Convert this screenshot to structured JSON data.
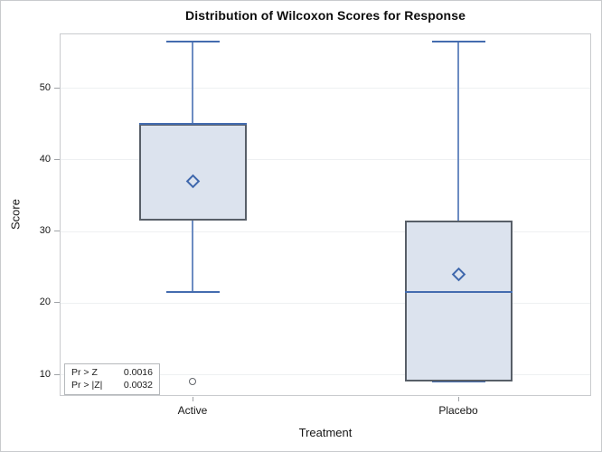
{
  "colors": {
    "box_fill": "#dce3ee",
    "box_border": "#585f68",
    "line_blue": "#446caf",
    "whisker_blue": "#6c8cc2",
    "mean_blue": "#3e67ac",
    "outlier_stroke": "#62666b",
    "gridline": "#eef0f2",
    "axis_border": "#c9cbce",
    "tick": "#9fa2a6",
    "text": "#161616"
  },
  "chart_data": {
    "type": "boxplot",
    "title": "Distribution of Wilcoxon Scores for Response",
    "xlabel": "Treatment",
    "ylabel": "Score",
    "ylim": [
      7.0,
      57.6
    ],
    "yticks": [
      10,
      20,
      30,
      40,
      50
    ],
    "grid": "horizontal",
    "legend": "none",
    "categories": [
      "Active",
      "Placebo"
    ],
    "series": [
      {
        "name": "Active",
        "whisker_low": 21.5,
        "q1": 31.5,
        "median": 45,
        "q3": 45,
        "whisker_high": 56.5,
        "mean": 37,
        "outliers": [
          9
        ]
      },
      {
        "name": "Placebo",
        "whisker_low": 9,
        "q1": 9,
        "median": 21.5,
        "q3": 31.5,
        "whisker_high": 56.5,
        "mean": 24,
        "outliers": []
      }
    ],
    "annotations": {
      "rows": [
        {
          "label": "Pr > Z",
          "value": "0.0016"
        },
        {
          "label": "Pr > |Z|",
          "value": "0.0032"
        }
      ]
    }
  }
}
